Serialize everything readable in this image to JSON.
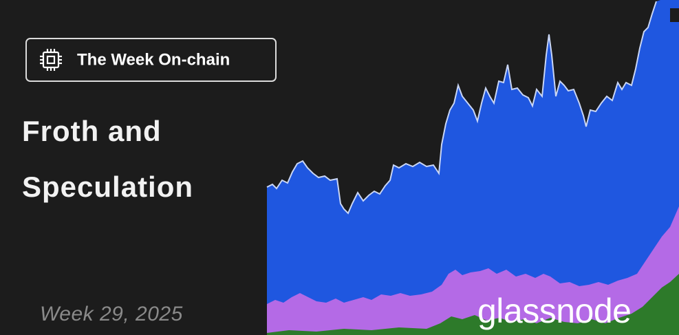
{
  "badge": {
    "label": "The Week On-chain"
  },
  "title": [
    "Froth and",
    "Speculation"
  ],
  "date": "Week 29, 2025",
  "logo": "glassnode"
}
